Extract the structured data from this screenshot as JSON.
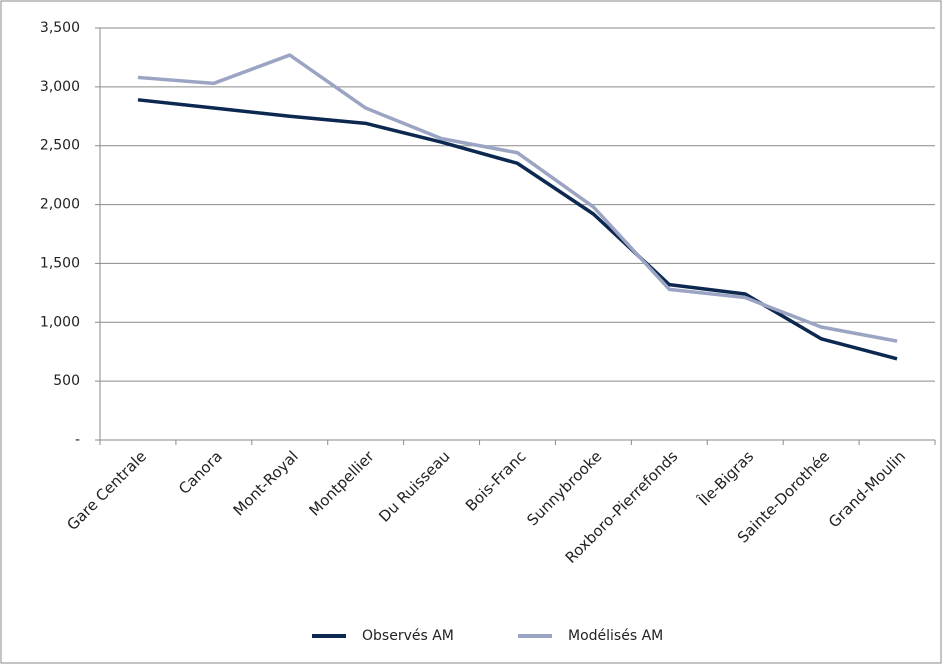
{
  "chart_data": {
    "type": "line",
    "categories": [
      "Gare Centrale",
      "Canora",
      "Mont-Royal",
      "Montpellier",
      "Du Ruisseau",
      "Bois-Franc",
      "Sunnybrooke",
      "Roxboro-Pierrefonds",
      "Île-Bigras",
      "Sainte-Dorothée",
      "Grand-Moulin"
    ],
    "series": [
      {
        "name": "Observés AM",
        "color": "#0c2850",
        "values": [
          2890,
          2820,
          2750,
          2690,
          2530,
          2350,
          1920,
          1320,
          1240,
          860,
          690
        ]
      },
      {
        "name": "Modélisés AM",
        "color": "#9ba4c3",
        "values": [
          3080,
          3030,
          3270,
          2820,
          2560,
          2440,
          1980,
          1280,
          1210,
          960,
          840
        ]
      }
    ],
    "ylim": [
      0,
      3500
    ],
    "yticks": [
      {
        "value": 0,
        "label": "-"
      },
      500,
      {
        "value": 1000,
        "label": "1,000"
      },
      {
        "value": 1500,
        "label": "1,500"
      },
      {
        "value": 2000,
        "label": "2,000"
      },
      {
        "value": 2500,
        "label": "2,500"
      },
      {
        "value": 3000,
        "label": "3,000"
      },
      {
        "value": 3500,
        "label": "3,500"
      }
    ],
    "grid": true,
    "legend": "bottom"
  }
}
